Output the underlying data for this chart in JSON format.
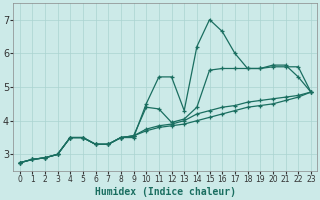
{
  "xlabel": "Humidex (Indice chaleur)",
  "ylabel": "",
  "bg_color": "#cceae8",
  "grid_color": "#aad4d0",
  "line_color": "#1a6e60",
  "xlim": [
    -0.5,
    23.5
  ],
  "ylim": [
    2.5,
    7.5
  ],
  "xticks": [
    0,
    1,
    2,
    3,
    4,
    5,
    6,
    7,
    8,
    9,
    10,
    11,
    12,
    13,
    14,
    15,
    16,
    17,
    18,
    19,
    20,
    21,
    22,
    23
  ],
  "yticks": [
    3,
    4,
    5,
    6,
    7
  ],
  "lines": [
    [
      2.75,
      2.85,
      2.9,
      3.0,
      3.5,
      3.5,
      3.3,
      3.3,
      3.5,
      3.5,
      4.5,
      5.3,
      5.3,
      4.3,
      6.2,
      7.0,
      6.65,
      6.0,
      5.55,
      5.55,
      5.65,
      5.65,
      5.3,
      4.85
    ],
    [
      2.75,
      2.85,
      2.9,
      3.0,
      3.5,
      3.5,
      3.3,
      3.3,
      3.5,
      3.55,
      4.4,
      4.35,
      3.95,
      4.05,
      4.4,
      5.5,
      5.55,
      5.55,
      5.55,
      5.55,
      5.6,
      5.6,
      5.6,
      4.85
    ],
    [
      2.75,
      2.85,
      2.9,
      3.0,
      3.5,
      3.5,
      3.3,
      3.3,
      3.5,
      3.55,
      3.75,
      3.85,
      3.9,
      4.0,
      4.2,
      4.3,
      4.4,
      4.45,
      4.55,
      4.6,
      4.65,
      4.7,
      4.75,
      4.85
    ],
    [
      2.75,
      2.85,
      2.9,
      3.0,
      3.5,
      3.5,
      3.3,
      3.3,
      3.5,
      3.55,
      3.7,
      3.8,
      3.85,
      3.9,
      4.0,
      4.1,
      4.2,
      4.3,
      4.4,
      4.45,
      4.5,
      4.6,
      4.7,
      4.85
    ]
  ]
}
